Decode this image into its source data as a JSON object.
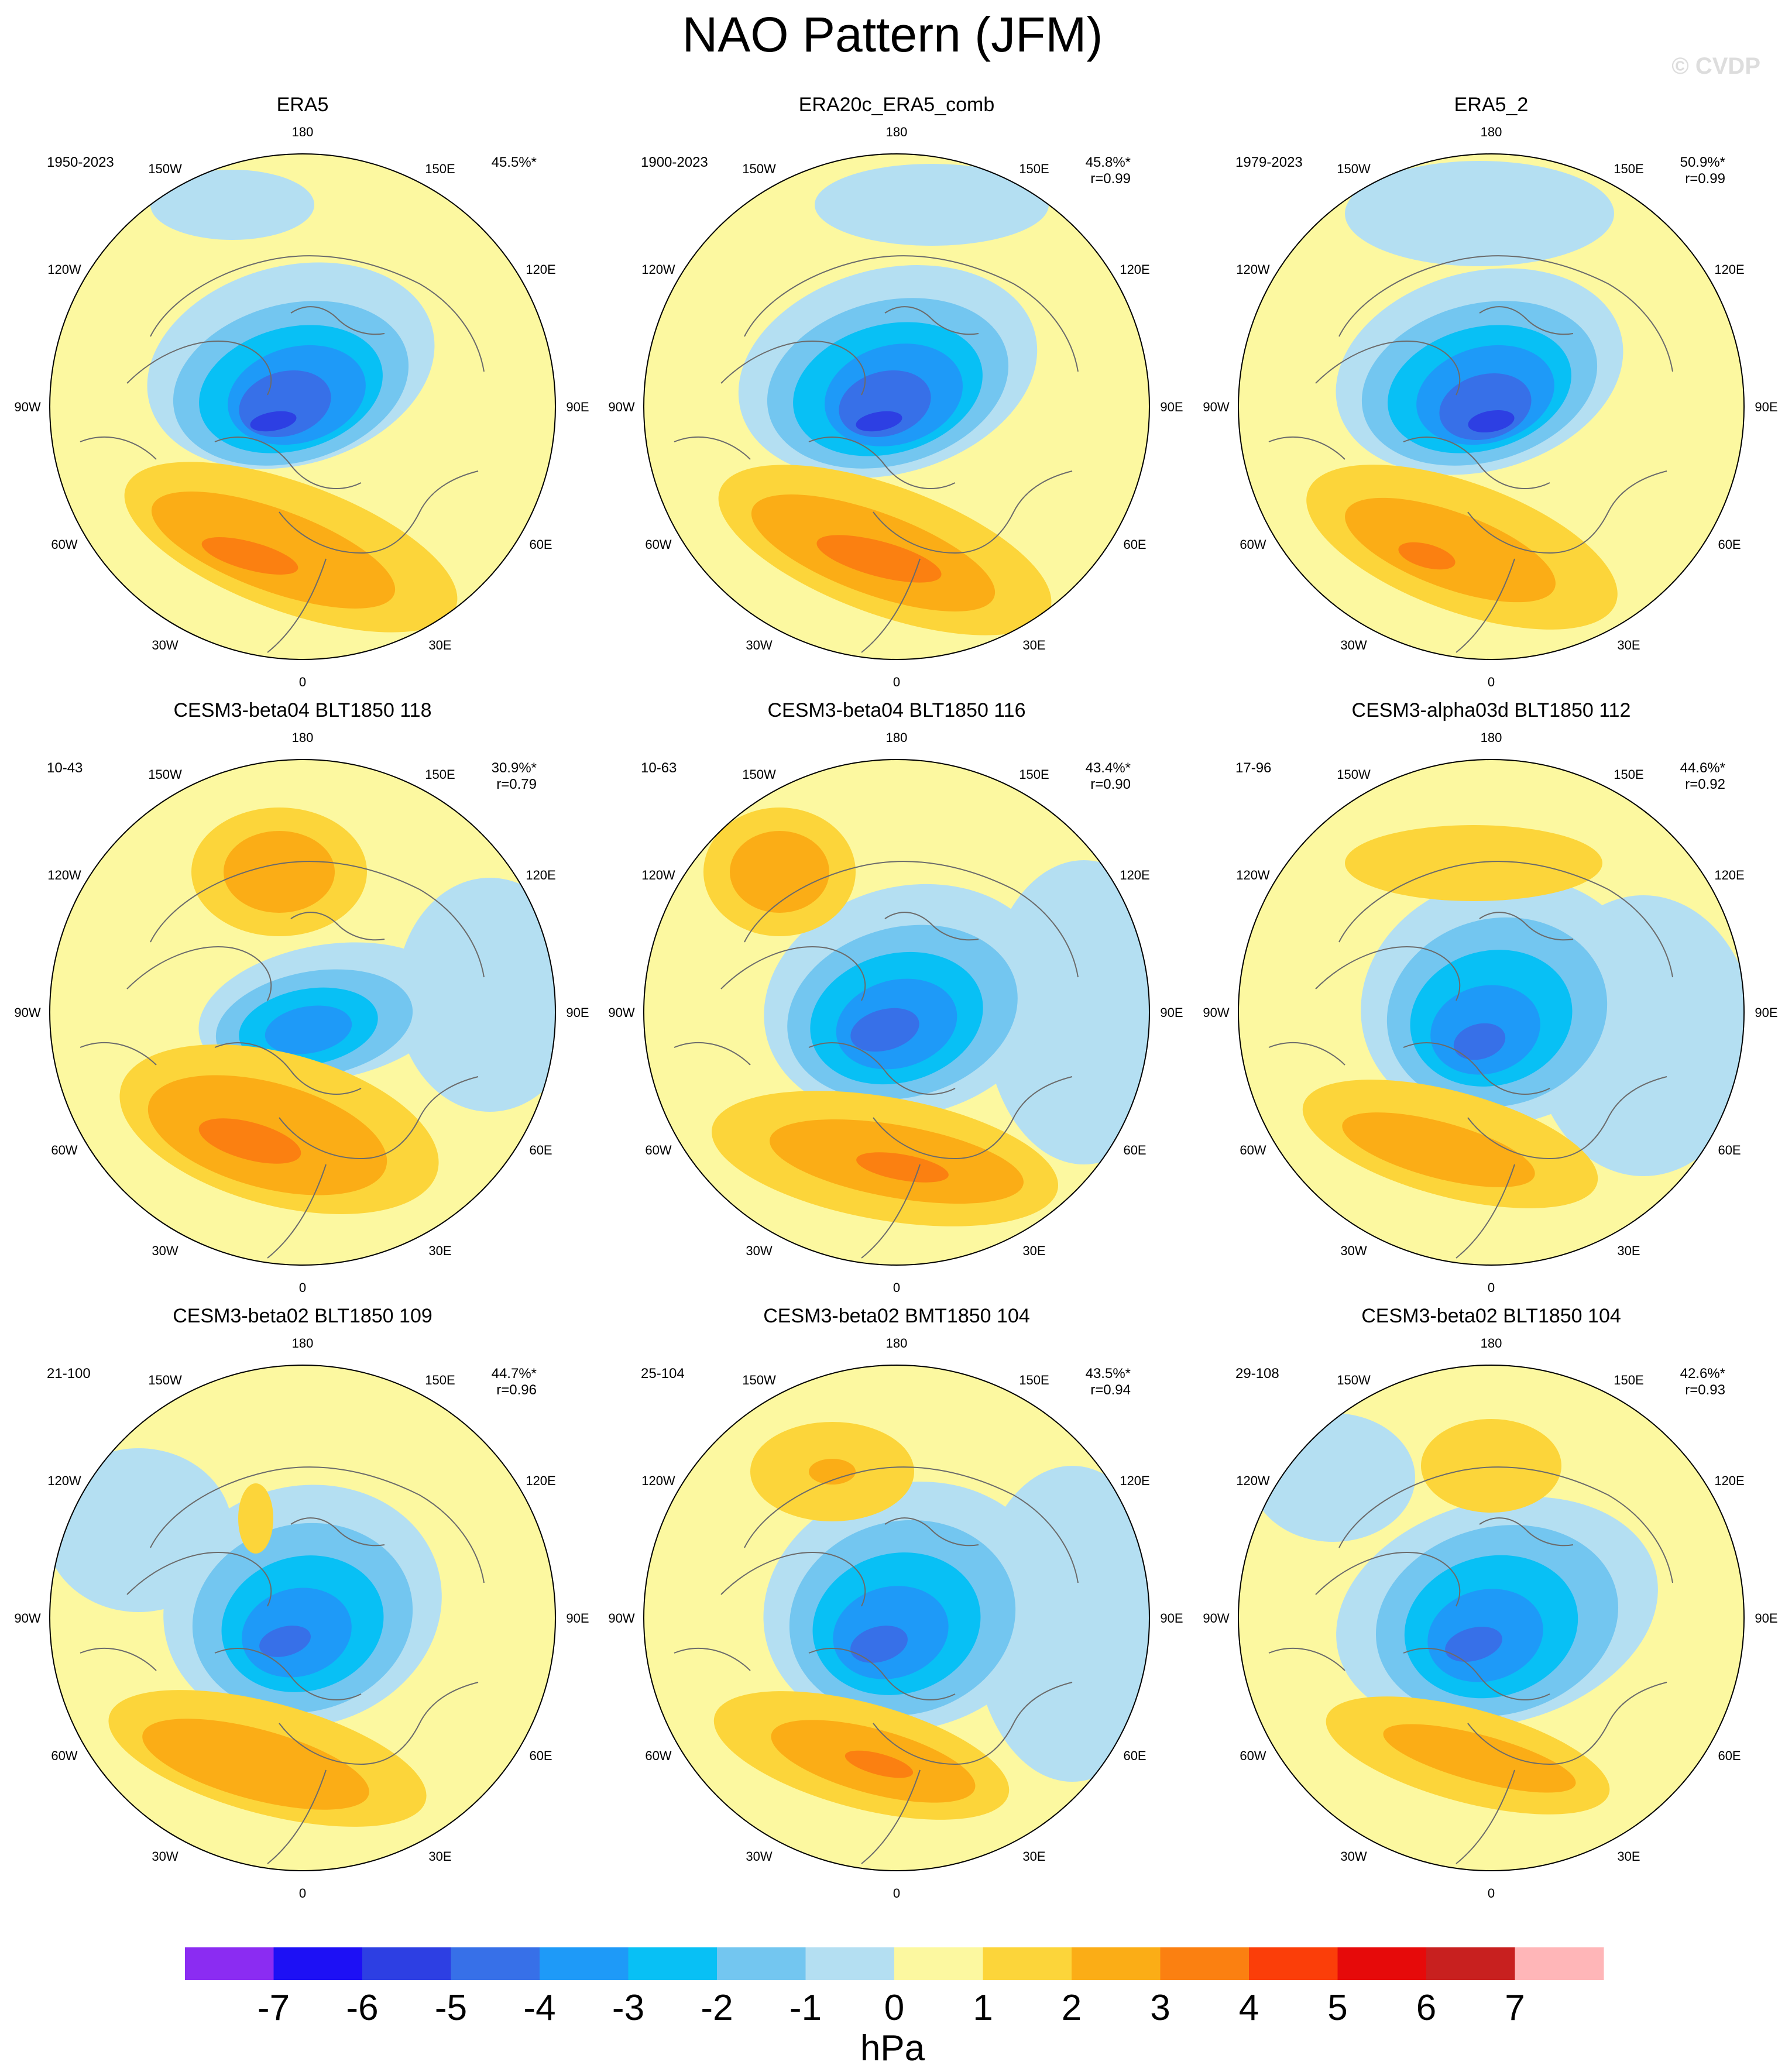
{
  "title": "NAO Pattern (JFM)",
  "watermark": "© CVDP",
  "unit_label": "hPa",
  "longitude_labels": [
    "180",
    "150E",
    "120E",
    "90E",
    "60E",
    "30E",
    "0",
    "30W",
    "60W",
    "90W",
    "120W",
    "150W"
  ],
  "colorbar": {
    "ticks": [
      "-7",
      "-6",
      "-5",
      "-4",
      "-3",
      "-2",
      "-1",
      "0",
      "1",
      "2",
      "3",
      "4",
      "5",
      "6",
      "7"
    ],
    "colors": [
      "#8b2cf2",
      "#1d10f5",
      "#2d3fe3",
      "#3770e8",
      "#1e9af8",
      "#08c0f5",
      "#73c6f0",
      "#b4dff2",
      "#fcf8a0",
      "#fcd53a",
      "#fbad16",
      "#fb8011",
      "#fb3e09",
      "#e60a0a",
      "#c8201f",
      "#ffb6b8"
    ]
  },
  "colors": {
    "land_outline": "#6b6b6b",
    "map_border": "#000000"
  },
  "panels": [
    {
      "title": "ERA5",
      "period": "1950-2023",
      "pct": "45.5%*",
      "corr": ""
    },
    {
      "title": "ERA20c_ERA5_comb",
      "period": "1900-2023",
      "pct": "45.8%*",
      "corr": "r=0.99"
    },
    {
      "title": "ERA5_2",
      "period": "1979-2023",
      "pct": "50.9%*",
      "corr": "r=0.99"
    },
    {
      "title": "CESM3-beta04 BLT1850 118",
      "period": "10-43",
      "pct": "30.9%*",
      "corr": "r=0.79"
    },
    {
      "title": "CESM3-beta04 BLT1850 116",
      "period": "10-63",
      "pct": "43.4%*",
      "corr": "r=0.90"
    },
    {
      "title": "CESM3-alpha03d BLT1850 112",
      "period": "17-96",
      "pct": "44.6%*",
      "corr": "r=0.92"
    },
    {
      "title": "CESM3-beta02 BLT1850 109",
      "period": "21-100",
      "pct": "44.7%*",
      "corr": "r=0.96"
    },
    {
      "title": "CESM3-beta02 BMT1850 104",
      "period": "25-104",
      "pct": "43.5%*",
      "corr": "r=0.94"
    },
    {
      "title": "CESM3-beta02 BLT1850 104",
      "period": "29-108",
      "pct": "42.6%*",
      "corr": "r=0.93"
    }
  ]
}
